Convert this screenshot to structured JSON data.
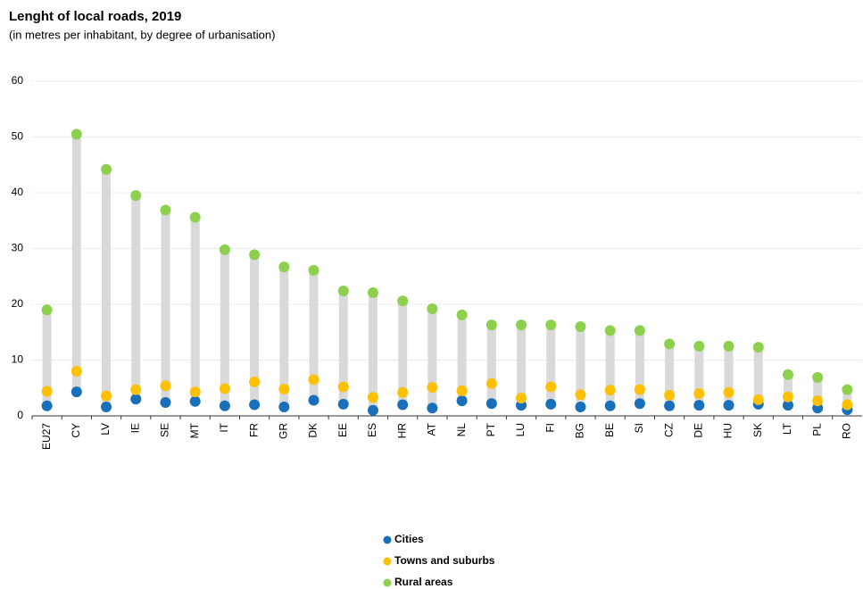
{
  "chart_data": {
    "type": "dot",
    "title": "Lenght of local roads, 2019",
    "subtitle": "(in metres per inhabitant, by degree of urbanisation)",
    "categories": [
      "EU27",
      "CY",
      "LV",
      "IE",
      "SE",
      "MT",
      "IT",
      "FR",
      "GR",
      "DK",
      "EE",
      "ES",
      "HR",
      "AT",
      "NL",
      "PT",
      "LU",
      "FI",
      "BG",
      "BE",
      "SI",
      "CZ",
      "DE",
      "HU",
      "SK",
      "LT",
      "PL",
      "RO"
    ],
    "series": [
      {
        "name": "Cities",
        "color": "#1a6fba",
        "values": [
          1.8,
          4.3,
          1.6,
          3.0,
          2.4,
          2.6,
          1.8,
          2.0,
          1.6,
          2.8,
          2.1,
          1.0,
          2.0,
          1.4,
          2.7,
          2.2,
          1.9,
          2.1,
          1.6,
          1.8,
          2.2,
          1.8,
          1.9,
          1.9,
          2.1,
          1.9,
          1.4,
          1.1
        ]
      },
      {
        "name": "Towns and suburbs",
        "color": "#ffc000",
        "values": [
          4.4,
          8.0,
          3.6,
          4.7,
          5.4,
          4.3,
          4.9,
          6.1,
          4.8,
          6.5,
          5.2,
          3.3,
          4.2,
          5.1,
          4.5,
          5.8,
          3.2,
          5.2,
          3.8,
          4.6,
          4.7,
          3.7,
          4.0,
          4.2,
          2.9,
          3.4,
          2.7,
          2.0
        ]
      },
      {
        "name": "Rural areas",
        "color": "#8dd04d",
        "values": [
          19.0,
          50.5,
          44.2,
          39.5,
          36.9,
          35.6,
          29.8,
          28.9,
          26.7,
          26.1,
          22.4,
          22.1,
          20.6,
          19.2,
          18.1,
          16.3,
          16.3,
          16.3,
          16.0,
          15.3,
          15.3,
          12.9,
          12.5,
          12.5,
          12.3,
          7.4,
          6.9,
          4.7
        ]
      }
    ],
    "range_color": "#d9d9d9",
    "ylim": [
      0,
      60
    ],
    "yticks": [
      0,
      10,
      20,
      30,
      40,
      50,
      60
    ],
    "grid": true,
    "legend_position": "bottom"
  }
}
